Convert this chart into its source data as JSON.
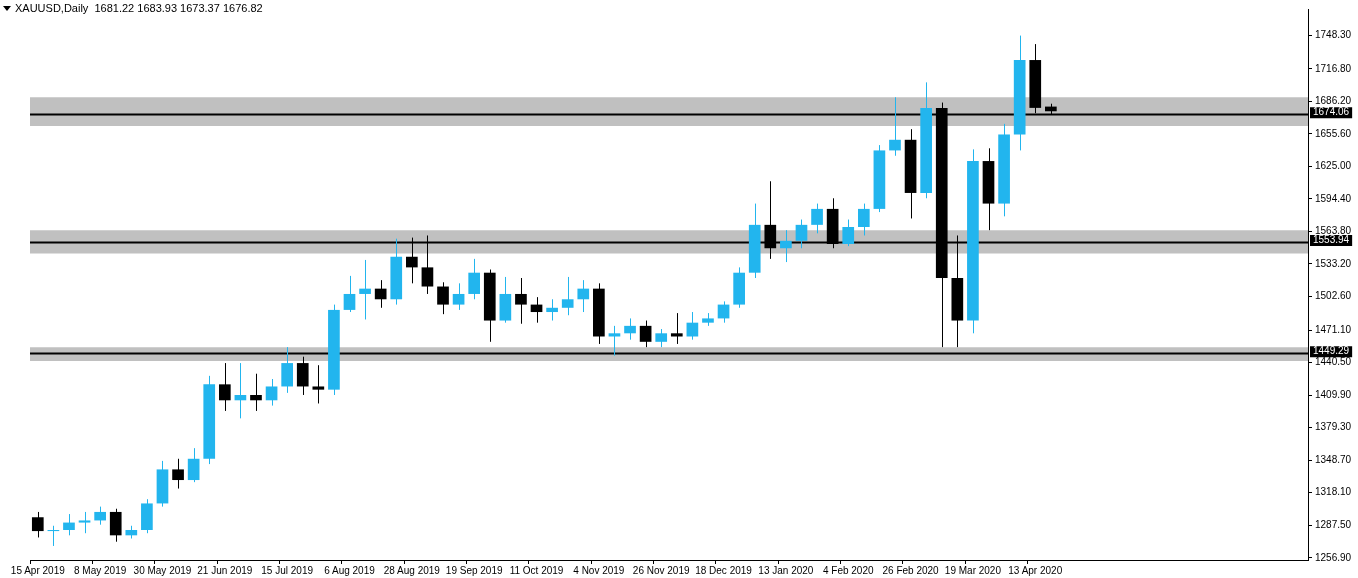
{
  "chart_data": {
    "type": "candlestick",
    "title": "XAUUSD,Daily  1681.22 1683.93 1673.37 1676.82",
    "categories": [
      "15 Apr 2019",
      null,
      null,
      null,
      "8 May 2019",
      null,
      null,
      null,
      "30 May 2019",
      null,
      null,
      null,
      "21 Jun 2019",
      null,
      null,
      null,
      "15 Jul 2019",
      null,
      null,
      null,
      "6 Aug 2019",
      null,
      null,
      null,
      "28 Aug 2019",
      null,
      null,
      null,
      "19 Sep 2019",
      null,
      null,
      null,
      "11 Oct 2019",
      null,
      null,
      null,
      "4 Nov 2019",
      null,
      null,
      null,
      "26 Nov 2019",
      null,
      null,
      null,
      "18 Dec 2019",
      null,
      null,
      null,
      "13 Jan 2020",
      null,
      null,
      null,
      "4 Feb 2020",
      null,
      null,
      null,
      "26 Feb 2020",
      null,
      null,
      null,
      "19 Mar 2020",
      null,
      null,
      null,
      "13 Apr 2020",
      null,
      null,
      null,
      null,
      null,
      null,
      null,
      null,
      null,
      null,
      null,
      null,
      null,
      null,
      null,
      null,
      null
    ],
    "ohlc": [
      [
        1295,
        1300,
        1276,
        1282
      ],
      [
        1282,
        1287,
        1268,
        1283
      ],
      [
        1283,
        1298,
        1278,
        1290
      ],
      [
        1290,
        1300,
        1280,
        1292
      ],
      [
        1292,
        1305,
        1288,
        1300
      ],
      [
        1300,
        1303,
        1272,
        1278
      ],
      [
        1278,
        1287,
        1275,
        1283
      ],
      [
        1283,
        1312,
        1280,
        1308
      ],
      [
        1308,
        1348,
        1305,
        1340
      ],
      [
        1340,
        1350,
        1322,
        1330
      ],
      [
        1330,
        1360,
        1328,
        1350
      ],
      [
        1350,
        1428,
        1345,
        1420
      ],
      [
        1420,
        1440,
        1395,
        1405
      ],
      [
        1405,
        1440,
        1388,
        1410
      ],
      [
        1410,
        1430,
        1395,
        1405
      ],
      [
        1405,
        1425,
        1400,
        1418
      ],
      [
        1418,
        1455,
        1412,
        1440
      ],
      [
        1440,
        1446,
        1410,
        1418
      ],
      [
        1418,
        1438,
        1402,
        1415
      ],
      [
        1415,
        1495,
        1410,
        1490
      ],
      [
        1490,
        1522,
        1488,
        1505
      ],
      [
        1505,
        1537,
        1481,
        1510
      ],
      [
        1510,
        1518,
        1492,
        1500
      ],
      [
        1500,
        1557,
        1495,
        1540
      ],
      [
        1540,
        1558,
        1515,
        1530
      ],
      [
        1530,
        1560,
        1505,
        1512
      ],
      [
        1512,
        1516,
        1486,
        1495
      ],
      [
        1495,
        1515,
        1490,
        1505
      ],
      [
        1505,
        1538,
        1500,
        1525
      ],
      [
        1525,
        1528,
        1460,
        1480
      ],
      [
        1480,
        1521,
        1478,
        1505
      ],
      [
        1505,
        1520,
        1477,
        1495
      ],
      [
        1495,
        1502,
        1478,
        1488
      ],
      [
        1488,
        1500,
        1480,
        1492
      ],
      [
        1492,
        1521,
        1485,
        1500
      ],
      [
        1500,
        1518,
        1488,
        1510
      ],
      [
        1510,
        1515,
        1458,
        1465
      ],
      [
        1465,
        1475,
        1447,
        1468
      ],
      [
        1468,
        1482,
        1462,
        1475
      ],
      [
        1475,
        1480,
        1455,
        1460
      ],
      [
        1460,
        1472,
        1455,
        1468
      ],
      [
        1468,
        1487,
        1458,
        1465
      ],
      [
        1465,
        1488,
        1462,
        1478
      ],
      [
        1478,
        1487,
        1475,
        1482
      ],
      [
        1482,
        1498,
        1478,
        1495
      ],
      [
        1495,
        1530,
        1492,
        1525
      ],
      [
        1525,
        1590,
        1520,
        1570
      ],
      [
        1570,
        1611,
        1538,
        1548
      ],
      [
        1548,
        1565,
        1535,
        1555
      ],
      [
        1555,
        1575,
        1548,
        1570
      ],
      [
        1570,
        1590,
        1562,
        1585
      ],
      [
        1585,
        1595,
        1548,
        1552
      ],
      [
        1552,
        1575,
        1550,
        1568
      ],
      [
        1568,
        1590,
        1560,
        1585
      ],
      [
        1585,
        1645,
        1582,
        1640
      ],
      [
        1640,
        1690,
        1635,
        1650
      ],
      [
        1650,
        1660,
        1576,
        1600
      ],
      [
        1600,
        1704,
        1595,
        1680
      ],
      [
        1680,
        1685,
        1455,
        1520
      ],
      [
        1520,
        1560,
        1455,
        1480
      ],
      [
        1480,
        1641,
        1468,
        1630
      ],
      [
        1630,
        1642,
        1565,
        1590
      ],
      [
        1590,
        1665,
        1578,
        1655
      ],
      [
        1655,
        1748,
        1640,
        1725
      ],
      [
        1725,
        1740,
        1675,
        1680
      ],
      [
        1681.22,
        1683.93,
        1673.37,
        1676.82
      ],
      null,
      null,
      null,
      null,
      null,
      null,
      null,
      null,
      null,
      null,
      null,
      null,
      null,
      null,
      null,
      null
    ],
    "colors": [
      "#000000",
      "#22b5ee",
      "#22b5ee",
      "#22b5ee",
      "#22b5ee",
      "#000000",
      "#22b5ee",
      "#22b5ee",
      "#22b5ee",
      "#000000",
      "#22b5ee",
      "#22b5ee",
      "#000000",
      "#22b5ee",
      "#000000",
      "#22b5ee",
      "#22b5ee",
      "#000000",
      "#000000",
      "#22b5ee",
      "#22b5ee",
      "#22b5ee",
      "#000000",
      "#22b5ee",
      "#000000",
      "#000000",
      "#000000",
      "#22b5ee",
      "#22b5ee",
      "#000000",
      "#22b5ee",
      "#000000",
      "#000000",
      "#22b5ee",
      "#22b5ee",
      "#22b5ee",
      "#000000",
      "#22b5ee",
      "#22b5ee",
      "#000000",
      "#22b5ee",
      "#000000",
      "#22b5ee",
      "#22b5ee",
      "#22b5ee",
      "#22b5ee",
      "#22b5ee",
      "#000000",
      "#22b5ee",
      "#22b5ee",
      "#22b5ee",
      "#000000",
      "#22b5ee",
      "#22b5ee",
      "#22b5ee",
      "#22b5ee",
      "#000000",
      "#22b5ee",
      "#000000",
      "#000000",
      "#22b5ee",
      "#000000",
      "#22b5ee",
      "#22b5ee",
      "#000000",
      "#000000",
      null,
      null,
      null,
      null,
      null,
      null,
      null,
      null,
      null,
      null,
      null,
      null,
      null,
      null,
      null,
      null
    ],
    "ylim": [
      1254.8,
      1773
    ],
    "yticks": [
      {
        "value": 1256.9,
        "label": "1256.90"
      },
      {
        "value": 1287.5,
        "label": "1287.50"
      },
      {
        "value": 1318.1,
        "label": "1318.10"
      },
      {
        "value": 1348.7,
        "label": "1348.70"
      },
      {
        "value": 1379.3,
        "label": "1379.30"
      },
      {
        "value": 1409.9,
        "label": "1409.90"
      },
      {
        "value": 1440.5,
        "label": "1440.50"
      },
      {
        "value": 1471.1,
        "label": "1471.10"
      },
      {
        "value": 1502.6,
        "label": "1502.60"
      },
      {
        "value": 1533.2,
        "label": "1533.20"
      },
      {
        "value": 1563.8,
        "label": "1563.80"
      },
      {
        "value": 1594.4,
        "label": "1594.40"
      },
      {
        "value": 1625,
        "label": "1625.00"
      },
      {
        "value": 1655.6,
        "label": "1655.60"
      },
      {
        "value": 1686.2,
        "label": "1686.20"
      },
      {
        "value": 1716.8,
        "label": "1716.80"
      },
      {
        "value": 1748.3,
        "label": "1748.30"
      }
    ],
    "bands": [
      {
        "axis": "y",
        "from": 1663,
        "to": 1690,
        "color": "#c0c0c0"
      },
      {
        "axis": "y",
        "from": 1543,
        "to": 1565,
        "color": "#c0c0c0"
      },
      {
        "axis": "y",
        "from": 1442,
        "to": 1455,
        "color": "#c0c0c0"
      }
    ],
    "ref_lines": [
      {
        "axis": "y",
        "value": 1674.06,
        "label": "1674.06",
        "color": "#000000"
      },
      {
        "axis": "y",
        "value": 1553.94,
        "label": "1553.94",
        "color": "#000000"
      },
      {
        "axis": "y",
        "value": 1449.29,
        "label": "1449.29",
        "color": "#000000"
      }
    ],
    "grid": false,
    "legend": false
  }
}
